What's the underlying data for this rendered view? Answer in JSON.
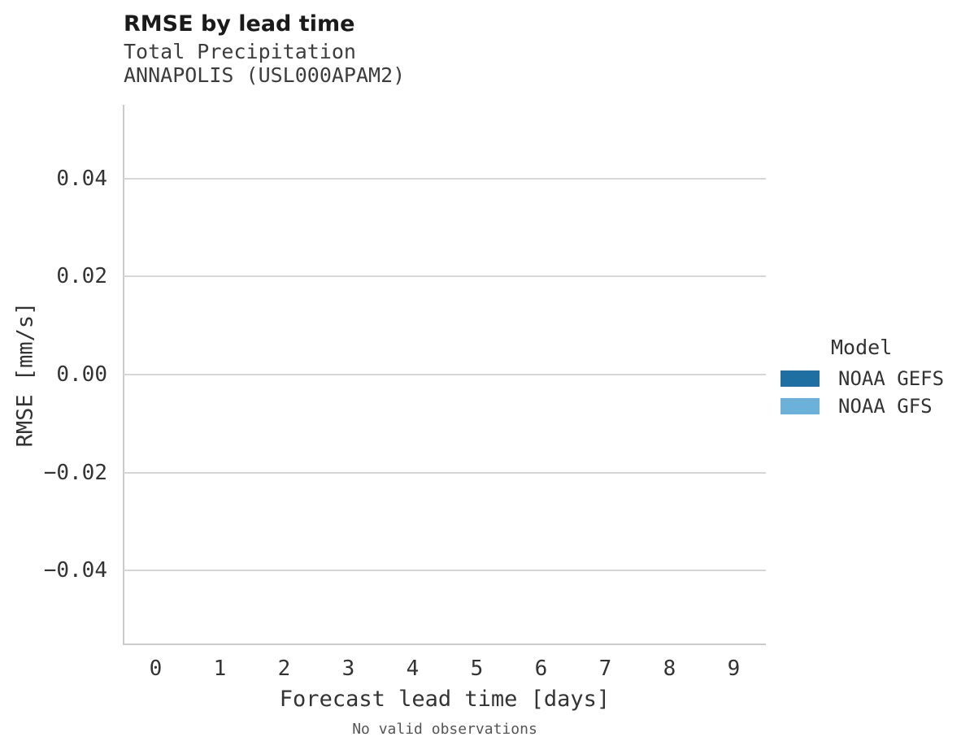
{
  "header": {
    "title": "RMSE by lead time",
    "subtitle_line1": "Total Precipitation",
    "subtitle_line2": "ANNAPOLIS (USL000APAM2)"
  },
  "caption": "No valid observations",
  "legend": {
    "title": "Model",
    "items": [
      {
        "label": "NOAA GEFS",
        "color": "#1f70a2"
      },
      {
        "label": "NOAA GFS",
        "color": "#6cb1da"
      }
    ]
  },
  "chart_data": {
    "type": "line",
    "title": "RMSE by lead time",
    "subtitle": "Total Precipitation ANNAPOLIS (USL000APAM2)",
    "xlabel": "Forecast lead time [days]",
    "ylabel": "RMSE [mm/s]",
    "xticks": [
      0,
      1,
      2,
      3,
      4,
      5,
      6,
      7,
      8,
      9
    ],
    "yticks": [
      0.04,
      0.02,
      0.0,
      -0.02,
      -0.04
    ],
    "ytick_labels": [
      "0.04",
      "0.02",
      "0.00",
      "−0.02",
      "−0.04"
    ],
    "xlim": [
      -0.5,
      9.5
    ],
    "ylim": [
      -0.055,
      0.055
    ],
    "grid": true,
    "legend_position": "right",
    "legend_title": "Model",
    "series": [
      {
        "name": "NOAA GEFS",
        "color": "#1f70a2",
        "values": []
      },
      {
        "name": "NOAA GFS",
        "color": "#6cb1da",
        "values": []
      }
    ],
    "annotation": "No valid observations",
    "colors": {
      "axis_domain": "#cbcbcb",
      "gridline": "#d6d6d6"
    }
  }
}
